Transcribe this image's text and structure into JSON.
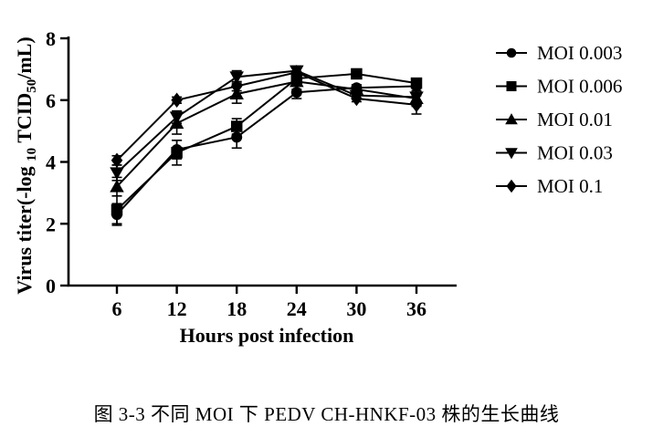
{
  "figure": {
    "caption": "图 3-3 不同 MOI 下 PEDV CH-HNKF-03 株的生长曲线"
  },
  "chart_data": {
    "type": "line",
    "title": "",
    "xlabel": "Hours post infection",
    "ylabel": "Virus titer(-log 10 TCID50/mL)",
    "ylabel_rich": [
      {
        "text": "Virus titer(-log "
      },
      {
        "text": "10",
        "sub": true
      },
      {
        "text": " TCID"
      },
      {
        "text": "50",
        "sub": true
      },
      {
        "text": "/mL)"
      }
    ],
    "x": [
      6,
      12,
      18,
      24,
      30,
      36
    ],
    "xticks": [
      "6",
      "12",
      "18",
      "24",
      "30",
      "36"
    ],
    "yticks": [
      "0",
      "2",
      "4",
      "6",
      "8"
    ],
    "ylim": [
      0,
      8
    ],
    "grid": false,
    "legend_position": "right",
    "color": "#000000",
    "background": "#ffffff",
    "error_bars": true,
    "series": [
      {
        "name": "MOI 0.003",
        "marker": "circle",
        "values": [
          2.3,
          4.4,
          4.8,
          6.25,
          6.4,
          6.45
        ],
        "errors": [
          0.35,
          0.3,
          0.35,
          0.2,
          0.1,
          0.15
        ]
      },
      {
        "name": "MOI 0.006",
        "marker": "square",
        "values": [
          2.45,
          4.3,
          5.15,
          6.7,
          6.85,
          6.55
        ],
        "errors": [
          0.45,
          0.4,
          0.25,
          0.2,
          0.1,
          0.15
        ]
      },
      {
        "name": "MOI 0.01",
        "marker": "triangle-up",
        "values": [
          3.2,
          5.25,
          6.2,
          6.6,
          6.35,
          6.05
        ],
        "errors": [
          0.3,
          0.35,
          0.3,
          0.25,
          0.1,
          0.2
        ]
      },
      {
        "name": "MOI 0.03",
        "marker": "triangle-down",
        "values": [
          3.65,
          5.45,
          6.75,
          6.95,
          6.15,
          6.1
        ],
        "errors": [
          0.25,
          0.2,
          0.2,
          0.15,
          0.1,
          0.3
        ]
      },
      {
        "name": "MOI 0.1",
        "marker": "diamond",
        "values": [
          4.05,
          6.0,
          6.45,
          6.9,
          6.05,
          5.85
        ],
        "errors": [
          0.15,
          0.1,
          0.15,
          0.15,
          0.1,
          0.3
        ]
      }
    ]
  }
}
